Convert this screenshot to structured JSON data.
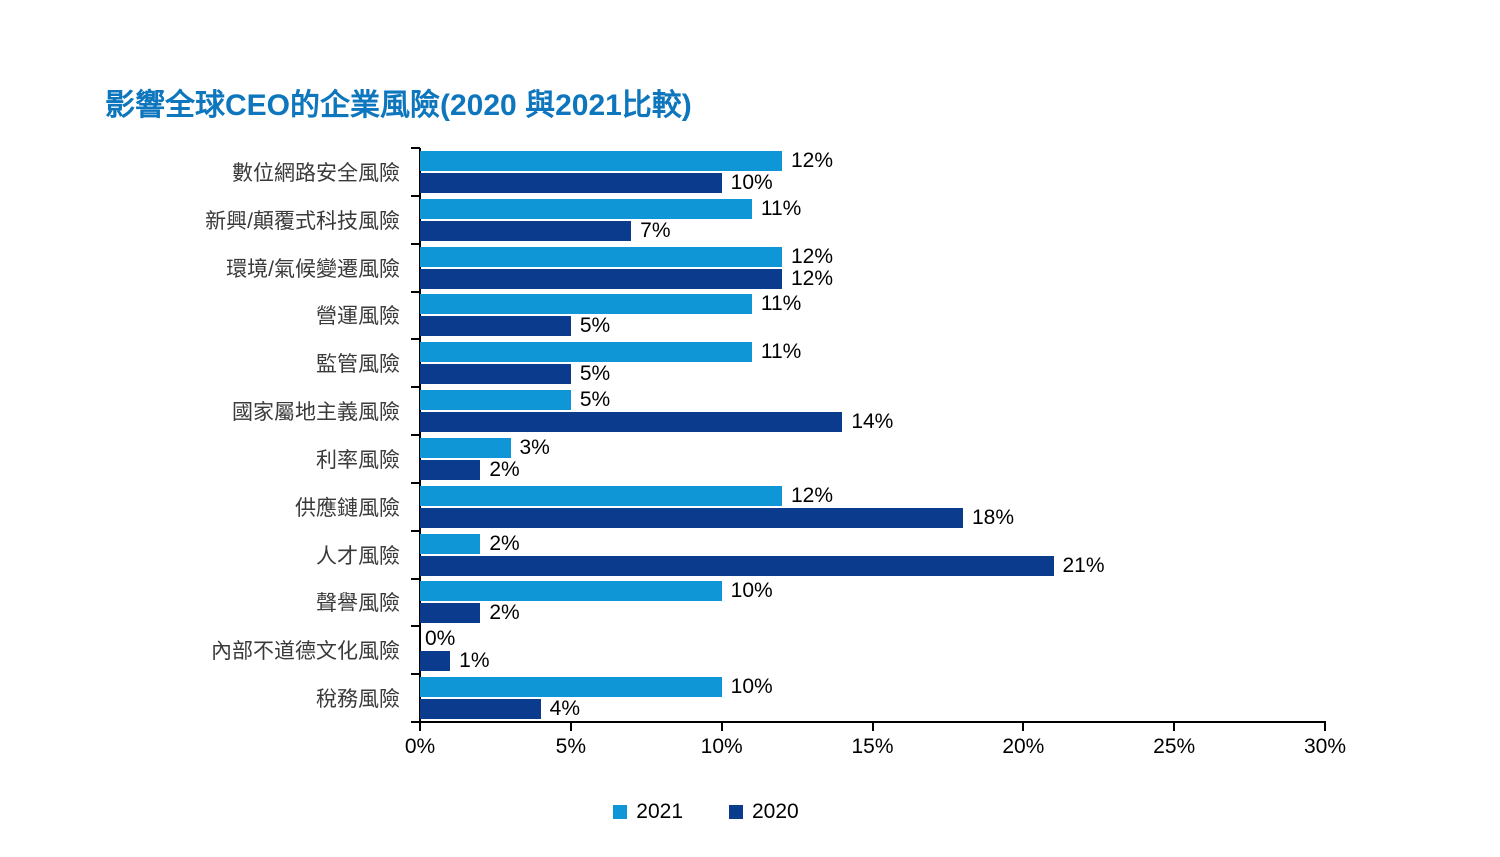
{
  "title": "影響全球CEO的企業風險(2020 與2021比較)",
  "colors": {
    "title": "#0E76BD",
    "series_2021": "#0E96D6",
    "series_2020": "#0B3B8C",
    "axis": "#000000",
    "category_text": "#3A3A3A",
    "value_text": "#000000"
  },
  "chart_data": {
    "type": "bar",
    "orientation": "horizontal",
    "title": "影響全球CEO的企業風險(2020 與2021比較)",
    "categories": [
      "數位網路安全風險",
      "新興/顛覆式科技風險",
      "環境/氣候變遷風險",
      "營運風險",
      "監管風險",
      "國家屬地主義風險",
      "利率風險",
      "供應鏈風險",
      "人才風險",
      "聲譽風險",
      "內部不道德文化風險",
      "稅務風險"
    ],
    "series": [
      {
        "name": "2021",
        "color": "#0E96D6",
        "values": [
          12,
          11,
          12,
          11,
          11,
          5,
          3,
          12,
          2,
          10,
          0,
          10
        ]
      },
      {
        "name": "2020",
        "color": "#0B3B8C",
        "values": [
          10,
          7,
          12,
          5,
          5,
          14,
          2,
          18,
          21,
          2,
          1,
          4
        ]
      }
    ],
    "value_label_suffix": "%",
    "xlabel": "",
    "ylabel": "",
    "xlim": [
      0,
      30
    ],
    "x_ticks": [
      {
        "value": 0,
        "label": "0%"
      },
      {
        "value": 5,
        "label": "5%"
      },
      {
        "value": 10,
        "label": "10%"
      },
      {
        "value": 15,
        "label": "15%"
      },
      {
        "value": 20,
        "label": "20%"
      },
      {
        "value": 25,
        "label": "25%"
      },
      {
        "value": 30,
        "label": "30%"
      }
    ],
    "grid": false,
    "legend_position": "bottom-center"
  }
}
